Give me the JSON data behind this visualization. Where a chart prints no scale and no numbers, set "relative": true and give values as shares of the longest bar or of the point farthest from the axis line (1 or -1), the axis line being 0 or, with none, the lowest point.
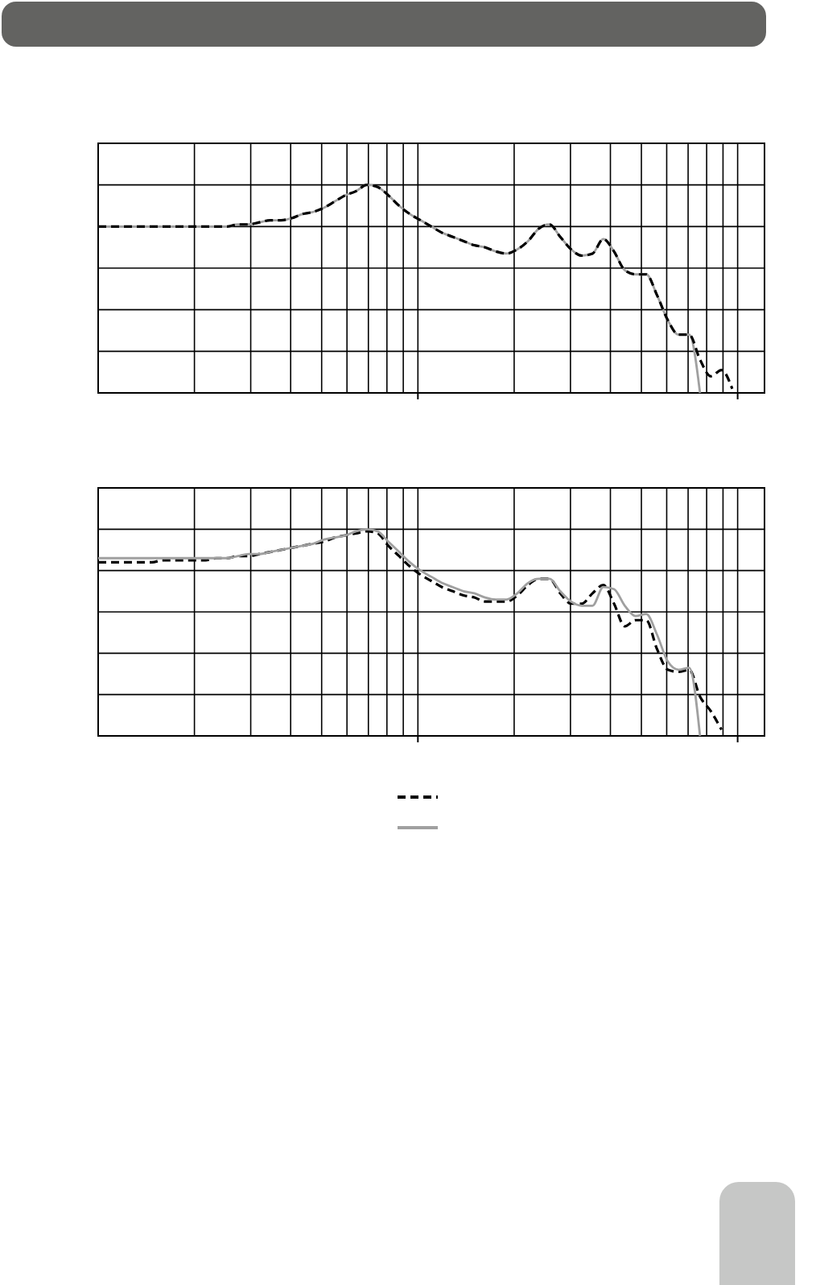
{
  "chart_data": [
    {
      "type": "line",
      "relative": true,
      "grid": true,
      "categories": [
        null,
        null,
        null,
        null,
        null,
        null,
        null,
        null,
        null,
        null,
        null,
        null,
        null,
        null,
        null,
        null,
        null,
        null,
        null,
        null,
        null,
        null,
        null,
        null,
        null,
        null,
        null,
        null,
        null,
        null,
        null,
        null,
        null,
        null,
        null,
        null,
        null,
        null,
        null,
        null,
        null,
        null,
        null,
        null,
        null,
        null,
        null,
        null,
        null,
        null,
        null,
        null,
        null,
        null,
        null,
        null,
        null,
        null,
        null,
        null
      ],
      "series": [
        {
          "color": "#a0a0a0",
          "line_style": "solid",
          "values": [
            0.8,
            0.8,
            0.8,
            0.8,
            0.8,
            0.8,
            0.8,
            0.8,
            0.8,
            0.8,
            0.8,
            0.8,
            0.8,
            0.81,
            0.81,
            0.82,
            0.83,
            0.83,
            0.84,
            0.86,
            0.87,
            0.89,
            0.92,
            0.95,
            0.97,
            1,
            0.99,
            0.95,
            0.9,
            0.86,
            0.83,
            0.8,
            0.77,
            0.75,
            0.73,
            0.71,
            0.7,
            0.68,
            0.67,
            0.69,
            0.73,
            0.79,
            0.81,
            0.75,
            0.69,
            0.66,
            0.67,
            0.74,
            0.68,
            0.59,
            0.57,
            0.57,
            0.47,
            0.35,
            0.28,
            0.28,
            0,
            null,
            null,
            null
          ]
        },
        {
          "color": "#000000",
          "line_style": "dashed",
          "values": [
            0.8,
            0.8,
            0.8,
            0.8,
            0.8,
            0.8,
            0.8,
            0.8,
            0.8,
            0.8,
            0.8,
            0.8,
            0.8,
            0.81,
            0.81,
            0.82,
            0.83,
            0.83,
            0.84,
            0.86,
            0.87,
            0.89,
            0.92,
            0.95,
            0.97,
            1,
            0.99,
            0.95,
            0.9,
            0.86,
            0.83,
            0.8,
            0.77,
            0.75,
            0.73,
            0.71,
            0.7,
            0.68,
            0.67,
            0.69,
            0.73,
            0.79,
            0.81,
            0.75,
            0.69,
            0.66,
            0.67,
            0.74,
            0.68,
            0.59,
            0.57,
            0.57,
            0.47,
            0.35,
            0.28,
            0.28,
            0.16,
            0.08,
            0.11,
            0.02
          ]
        }
      ]
    },
    {
      "type": "line",
      "relative": true,
      "grid": true,
      "categories": [
        null,
        null,
        null,
        null,
        null,
        null,
        null,
        null,
        null,
        null,
        null,
        null,
        null,
        null,
        null,
        null,
        null,
        null,
        null,
        null,
        null,
        null,
        null,
        null,
        null,
        null,
        null,
        null,
        null,
        null,
        null,
        null,
        null,
        null,
        null,
        null,
        null,
        null,
        null,
        null,
        null,
        null,
        null,
        null,
        null,
        null,
        null,
        null,
        null,
        null,
        null,
        null,
        null,
        null,
        null,
        null,
        null,
        null,
        null,
        null
      ],
      "series": [
        {
          "color": "#000000",
          "line_style": "dashed",
          "values": [
            0.84,
            0.84,
            0.84,
            0.84,
            0.84,
            0.84,
            0.85,
            0.85,
            0.85,
            0.85,
            0.85,
            0.86,
            0.86,
            0.87,
            0.87,
            0.88,
            0.89,
            0.9,
            0.91,
            0.92,
            0.93,
            0.94,
            0.96,
            0.97,
            0.98,
            0.99,
            0.98,
            0.92,
            0.87,
            0.82,
            0.78,
            0.75,
            0.72,
            0.7,
            0.68,
            0.67,
            0.65,
            0.65,
            0.65,
            0.68,
            0.73,
            0.76,
            0.76,
            0.69,
            0.64,
            0.64,
            0.69,
            0.73,
            0.64,
            0.53,
            0.56,
            0.56,
            0.42,
            0.32,
            0.31,
            0.32,
            0.19,
            0.12,
            0.03,
            null
          ]
        },
        {
          "color": "#a0a0a0",
          "line_style": "solid",
          "values": [
            0.86,
            0.86,
            0.86,
            0.86,
            0.86,
            0.86,
            0.86,
            0.86,
            0.86,
            0.86,
            0.86,
            0.86,
            0.86,
            0.87,
            0.88,
            0.88,
            0.89,
            0.9,
            0.91,
            0.92,
            0.93,
            0.95,
            0.96,
            0.97,
            0.99,
            1,
            0.99,
            0.94,
            0.89,
            0.84,
            0.8,
            0.77,
            0.74,
            0.72,
            0.7,
            0.69,
            0.67,
            0.66,
            0.66,
            0.69,
            0.74,
            0.76,
            0.76,
            0.7,
            0.65,
            0.63,
            0.63,
            0.72,
            0.71,
            0.63,
            0.58,
            0.59,
            0.49,
            0.36,
            0.32,
            0.33,
            0,
            null,
            null,
            null
          ]
        }
      ]
    }
  ]
}
